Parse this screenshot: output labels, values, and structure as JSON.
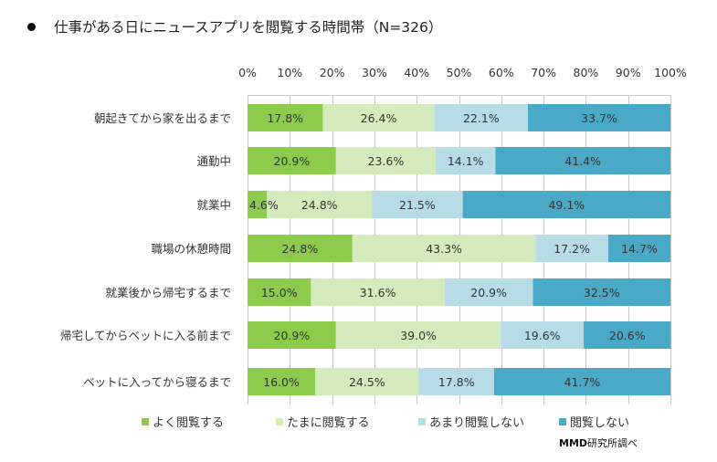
{
  "title": "仕事がある日にニュースアプリを閲覧する時間帯（N=326）",
  "source": {
    "brand": "MMD",
    "suffix": "研究所調べ"
  },
  "chart_data": {
    "type": "bar",
    "orientation": "horizontal",
    "stacked": true,
    "percent": true,
    "title": "仕事がある日にニュースアプリを閲覧する時間帯（N=326）",
    "xlabel": "",
    "ylabel": "",
    "xlim": [
      0,
      100
    ],
    "x_ticks": [
      "0%",
      "10%",
      "20%",
      "30%",
      "40%",
      "50%",
      "60%",
      "70%",
      "80%",
      "90%",
      "100%"
    ],
    "x_axis_position": "top",
    "grid": true,
    "legend_position": "bottom",
    "categories": [
      "朝起きてから家を出るまで",
      "通勤中",
      "就業中",
      "職場の休憩時間",
      "就業後から帰宅するまで",
      "帰宅してからベットに入る前まで",
      "ベットに入ってから寝るまで"
    ],
    "series": [
      {
        "name": "よく閲覧する",
        "color": "#8ccb4c",
        "values": [
          17.8,
          20.9,
          4.6,
          24.8,
          15.0,
          20.9,
          16.0
        ]
      },
      {
        "name": "たまに閲覧する",
        "color": "#d4ebbd",
        "values": [
          26.4,
          23.6,
          24.8,
          43.3,
          31.6,
          39.0,
          24.5
        ]
      },
      {
        "name": "あまり閲覧しない",
        "color": "#b7dce8",
        "values": [
          22.1,
          14.1,
          21.5,
          17.2,
          20.9,
          19.6,
          17.8
        ]
      },
      {
        "name": "閲覧しない",
        "color": "#4aa9c6",
        "values": [
          33.7,
          41.4,
          49.1,
          14.7,
          32.5,
          20.6,
          41.7
        ]
      }
    ],
    "value_labels": [
      [
        "17.8%",
        "26.4%",
        "22.1%",
        "33.7%"
      ],
      [
        "20.9%",
        "23.6%",
        "14.1%",
        "41.4%"
      ],
      [
        "4.6%",
        "24.8%",
        "21.5%",
        "49.1%"
      ],
      [
        "24.8%",
        "43.3%",
        "17.2%",
        "14.7%"
      ],
      [
        "15.0%",
        "31.6%",
        "20.9%",
        "32.5%"
      ],
      [
        "20.9%",
        "39.0%",
        "19.6%",
        "20.6%"
      ],
      [
        "16.0%",
        "24.5%",
        "17.8%",
        "41.7%"
      ]
    ],
    "annotation": "MMD研究所調べ"
  }
}
